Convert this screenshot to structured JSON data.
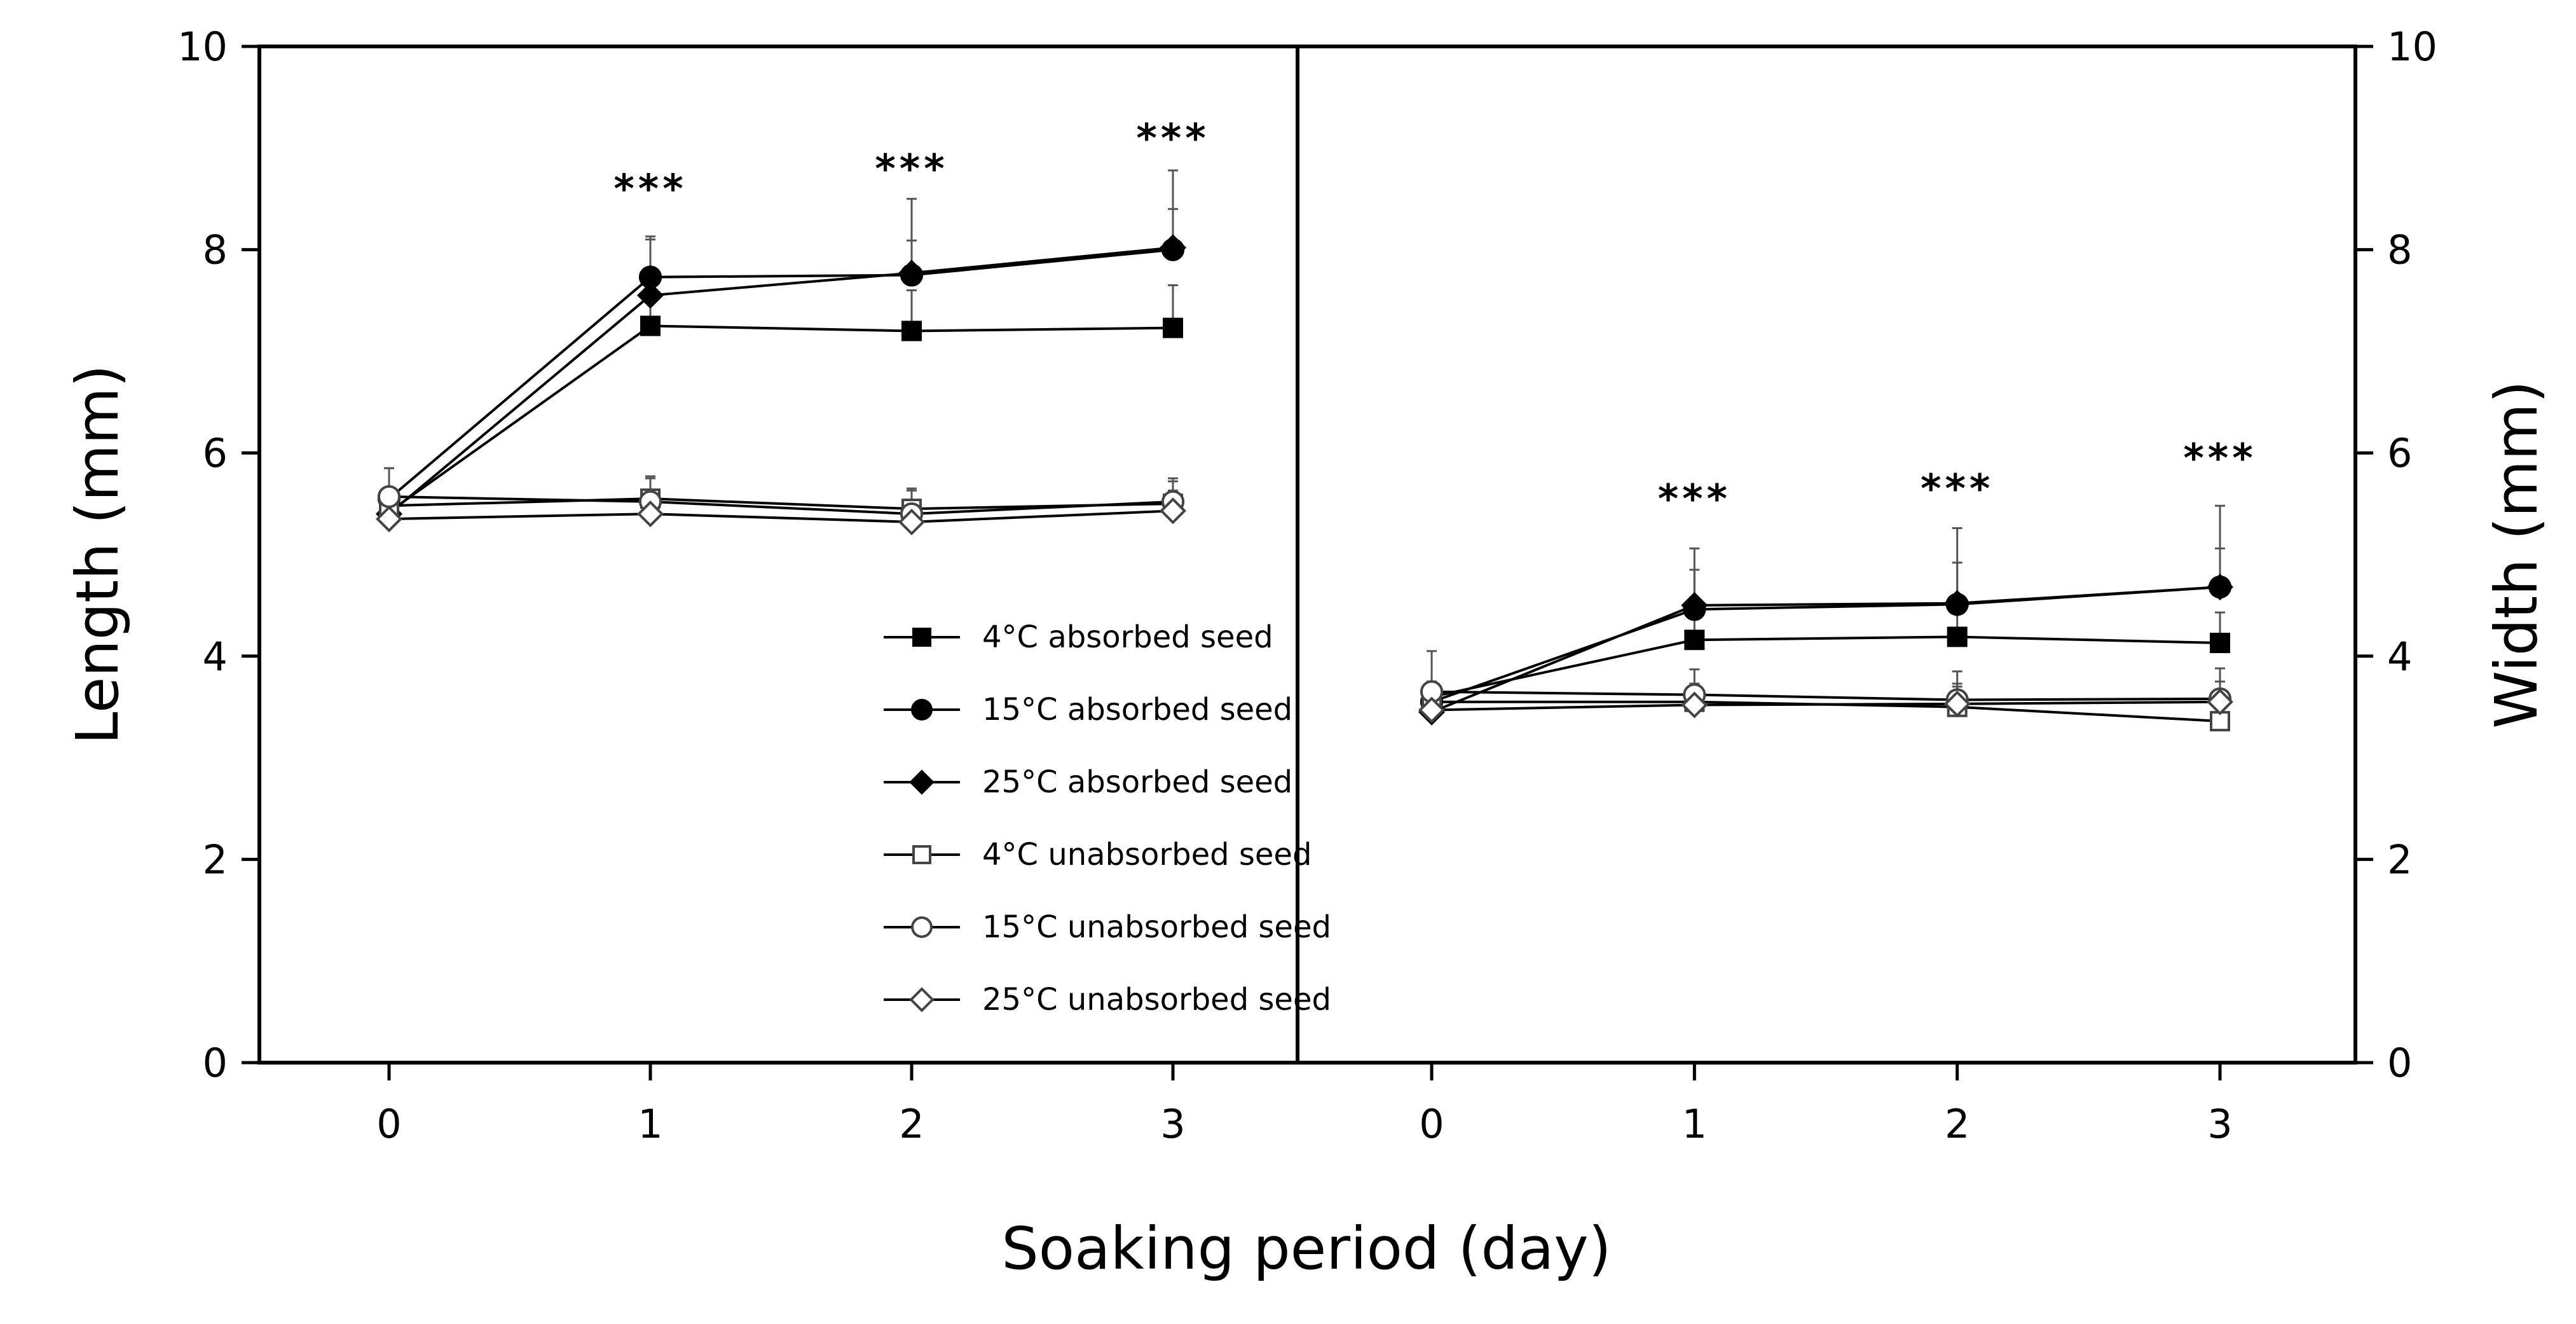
{
  "chart_data": {
    "type": "line",
    "xlabel": "Soaking period (day)",
    "legend": [
      {
        "key": "abs4",
        "label": "4°C absorbed seed",
        "marker": "square",
        "fill": "filled"
      },
      {
        "key": "abs15",
        "label": "15°C absorbed seed",
        "marker": "circle",
        "fill": "filled"
      },
      {
        "key": "abs25",
        "label": "25°C absorbed seed",
        "marker": "diamond",
        "fill": "filled"
      },
      {
        "key": "unab4",
        "label": "4°C unabsorbed seed",
        "marker": "square",
        "fill": "open"
      },
      {
        "key": "unab15",
        "label": "15°C unabsorbed seed",
        "marker": "circle",
        "fill": "open"
      },
      {
        "key": "unab25",
        "label": "25°C unabsorbed seed",
        "marker": "diamond",
        "fill": "open"
      }
    ],
    "panels": [
      {
        "id": "length",
        "ylabel": "Length (mm)",
        "ylim": [
          0,
          10
        ],
        "yticks": [
          0,
          2,
          4,
          6,
          8,
          10
        ],
        "x": [
          0,
          1,
          2,
          3
        ],
        "significance": [
          "",
          "***",
          "***",
          "***"
        ],
        "sig_y": [
          null,
          8.6,
          8.8,
          9.1
        ],
        "series": [
          {
            "key": "abs4",
            "values": [
              5.42,
              7.25,
              7.2,
              7.23
            ],
            "err": [
              0.2,
              0.4,
              0.4,
              0.42
            ]
          },
          {
            "key": "abs15",
            "values": [
              5.55,
              7.73,
              7.75,
              8.0
            ],
            "err": [
              0.3,
              0.4,
              0.75,
              0.78
            ]
          },
          {
            "key": "abs25",
            "values": [
              5.4,
              7.55,
              7.77,
              8.02
            ],
            "err": [
              0.2,
              0.55,
              0.32,
              0.38
            ]
          },
          {
            "key": "unab4",
            "values": [
              5.48,
              5.55,
              5.45,
              5.5
            ],
            "err": [
              0.15,
              0.2,
              0.18,
              0.25
            ]
          },
          {
            "key": "unab15",
            "values": [
              5.57,
              5.52,
              5.4,
              5.52
            ],
            "err": [
              0.28,
              0.25,
              0.25,
              0.2
            ]
          },
          {
            "key": "unab25",
            "values": [
              5.35,
              5.4,
              5.32,
              5.43
            ],
            "err": [
              0.1,
              0.15,
              0.15,
              0.2
            ]
          }
        ]
      },
      {
        "id": "width",
        "ylabel": "Width (mm)",
        "ylim": [
          0,
          10
        ],
        "yticks": [
          0,
          2,
          4,
          6,
          8,
          10
        ],
        "x": [
          0,
          1,
          2,
          3
        ],
        "significance": [
          "",
          "***",
          "***",
          "***"
        ],
        "sig_y": [
          null,
          5.55,
          5.65,
          5.95
        ],
        "series": [
          {
            "key": "abs4",
            "values": [
              3.6,
              4.16,
              4.19,
              4.13
            ],
            "err": [
              0.15,
              0.25,
              0.3,
              0.3
            ]
          },
          {
            "key": "abs15",
            "values": [
              3.55,
              4.46,
              4.51,
              4.68
            ],
            "err": [
              0.2,
              0.6,
              0.75,
              0.8
            ]
          },
          {
            "key": "abs25",
            "values": [
              3.45,
              4.5,
              4.52,
              4.68
            ],
            "err": [
              0.15,
              0.35,
              0.4,
              0.38
            ]
          },
          {
            "key": "unab4",
            "values": [
              3.55,
              3.55,
              3.5,
              3.36
            ],
            "err": [
              0.1,
              0.18,
              0.2,
              0.2
            ]
          },
          {
            "key": "unab15",
            "values": [
              3.65,
              3.62,
              3.57,
              3.58
            ],
            "err": [
              0.4,
              0.25,
              0.28,
              0.3
            ]
          },
          {
            "key": "unab25",
            "values": [
              3.47,
              3.52,
              3.53,
              3.55
            ],
            "err": [
              0.1,
              0.15,
              0.2,
              0.2
            ]
          }
        ]
      }
    ]
  }
}
